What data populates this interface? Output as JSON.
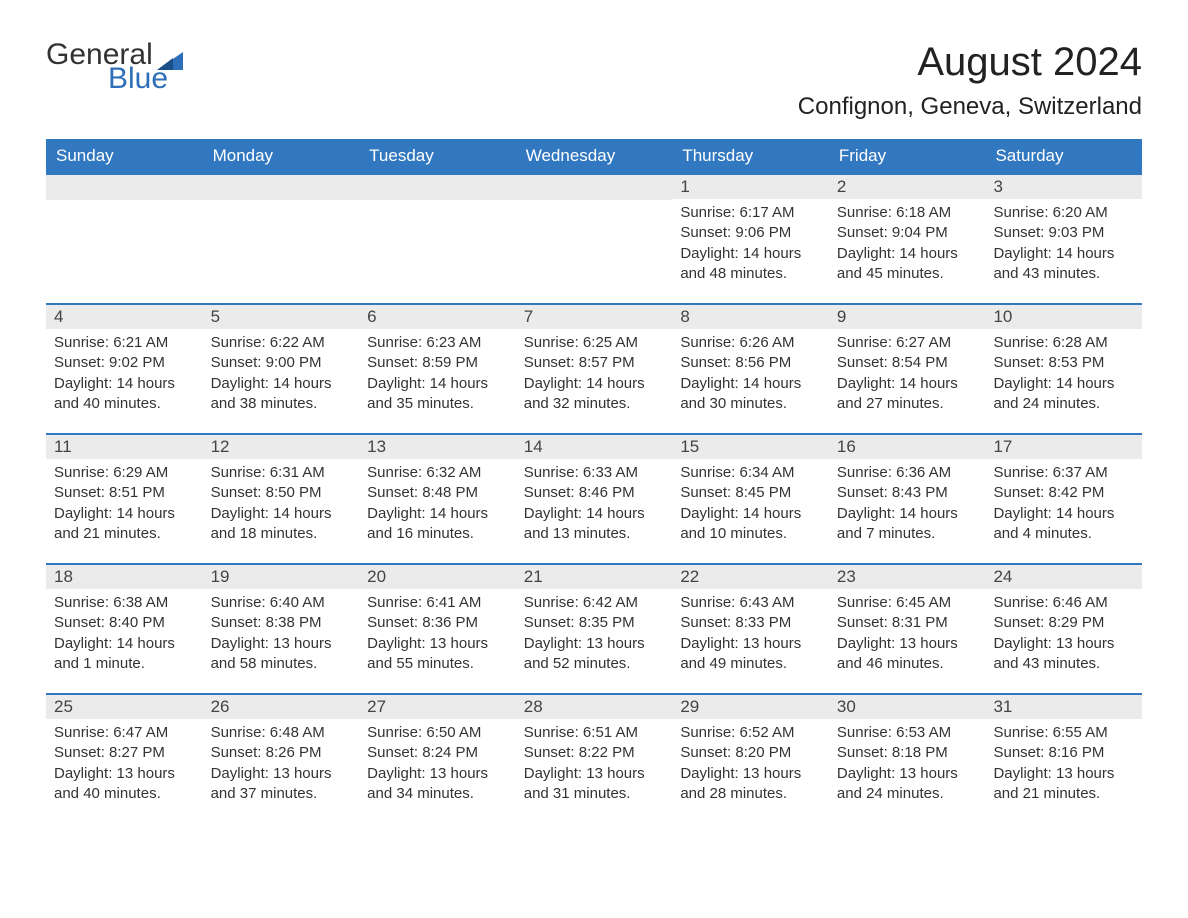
{
  "logo": {
    "word1": "General",
    "word2": "Blue",
    "accent_color": "#2d6fb8"
  },
  "title": "August 2024",
  "location": "Confignon, Geneva, Switzerland",
  "colors": {
    "header_bg": "#3178c0",
    "header_text": "#ffffff",
    "daynum_bg": "#ebebeb",
    "text": "#333333",
    "border": "#3178c0",
    "page_bg": "#ffffff"
  },
  "typography": {
    "month_title_size_pt": 30,
    "location_size_pt": 18,
    "dow_size_pt": 13,
    "daynum_size_pt": 13,
    "body_size_pt": 11
  },
  "calendar": {
    "type": "table",
    "days_of_week": [
      "Sunday",
      "Monday",
      "Tuesday",
      "Wednesday",
      "Thursday",
      "Friday",
      "Saturday"
    ],
    "weeks": [
      [
        null,
        null,
        null,
        null,
        {
          "n": "1",
          "sunrise": "6:17 AM",
          "sunset": "9:06 PM",
          "daylight": "14 hours and 48 minutes."
        },
        {
          "n": "2",
          "sunrise": "6:18 AM",
          "sunset": "9:04 PM",
          "daylight": "14 hours and 45 minutes."
        },
        {
          "n": "3",
          "sunrise": "6:20 AM",
          "sunset": "9:03 PM",
          "daylight": "14 hours and 43 minutes."
        }
      ],
      [
        {
          "n": "4",
          "sunrise": "6:21 AM",
          "sunset": "9:02 PM",
          "daylight": "14 hours and 40 minutes."
        },
        {
          "n": "5",
          "sunrise": "6:22 AM",
          "sunset": "9:00 PM",
          "daylight": "14 hours and 38 minutes."
        },
        {
          "n": "6",
          "sunrise": "6:23 AM",
          "sunset": "8:59 PM",
          "daylight": "14 hours and 35 minutes."
        },
        {
          "n": "7",
          "sunrise": "6:25 AM",
          "sunset": "8:57 PM",
          "daylight": "14 hours and 32 minutes."
        },
        {
          "n": "8",
          "sunrise": "6:26 AM",
          "sunset": "8:56 PM",
          "daylight": "14 hours and 30 minutes."
        },
        {
          "n": "9",
          "sunrise": "6:27 AM",
          "sunset": "8:54 PM",
          "daylight": "14 hours and 27 minutes."
        },
        {
          "n": "10",
          "sunrise": "6:28 AM",
          "sunset": "8:53 PM",
          "daylight": "14 hours and 24 minutes."
        }
      ],
      [
        {
          "n": "11",
          "sunrise": "6:29 AM",
          "sunset": "8:51 PM",
          "daylight": "14 hours and 21 minutes."
        },
        {
          "n": "12",
          "sunrise": "6:31 AM",
          "sunset": "8:50 PM",
          "daylight": "14 hours and 18 minutes."
        },
        {
          "n": "13",
          "sunrise": "6:32 AM",
          "sunset": "8:48 PM",
          "daylight": "14 hours and 16 minutes."
        },
        {
          "n": "14",
          "sunrise": "6:33 AM",
          "sunset": "8:46 PM",
          "daylight": "14 hours and 13 minutes."
        },
        {
          "n": "15",
          "sunrise": "6:34 AM",
          "sunset": "8:45 PM",
          "daylight": "14 hours and 10 minutes."
        },
        {
          "n": "16",
          "sunrise": "6:36 AM",
          "sunset": "8:43 PM",
          "daylight": "14 hours and 7 minutes."
        },
        {
          "n": "17",
          "sunrise": "6:37 AM",
          "sunset": "8:42 PM",
          "daylight": "14 hours and 4 minutes."
        }
      ],
      [
        {
          "n": "18",
          "sunrise": "6:38 AM",
          "sunset": "8:40 PM",
          "daylight": "14 hours and 1 minute."
        },
        {
          "n": "19",
          "sunrise": "6:40 AM",
          "sunset": "8:38 PM",
          "daylight": "13 hours and 58 minutes."
        },
        {
          "n": "20",
          "sunrise": "6:41 AM",
          "sunset": "8:36 PM",
          "daylight": "13 hours and 55 minutes."
        },
        {
          "n": "21",
          "sunrise": "6:42 AM",
          "sunset": "8:35 PM",
          "daylight": "13 hours and 52 minutes."
        },
        {
          "n": "22",
          "sunrise": "6:43 AM",
          "sunset": "8:33 PM",
          "daylight": "13 hours and 49 minutes."
        },
        {
          "n": "23",
          "sunrise": "6:45 AM",
          "sunset": "8:31 PM",
          "daylight": "13 hours and 46 minutes."
        },
        {
          "n": "24",
          "sunrise": "6:46 AM",
          "sunset": "8:29 PM",
          "daylight": "13 hours and 43 minutes."
        }
      ],
      [
        {
          "n": "25",
          "sunrise": "6:47 AM",
          "sunset": "8:27 PM",
          "daylight": "13 hours and 40 minutes."
        },
        {
          "n": "26",
          "sunrise": "6:48 AM",
          "sunset": "8:26 PM",
          "daylight": "13 hours and 37 minutes."
        },
        {
          "n": "27",
          "sunrise": "6:50 AM",
          "sunset": "8:24 PM",
          "daylight": "13 hours and 34 minutes."
        },
        {
          "n": "28",
          "sunrise": "6:51 AM",
          "sunset": "8:22 PM",
          "daylight": "13 hours and 31 minutes."
        },
        {
          "n": "29",
          "sunrise": "6:52 AM",
          "sunset": "8:20 PM",
          "daylight": "13 hours and 28 minutes."
        },
        {
          "n": "30",
          "sunrise": "6:53 AM",
          "sunset": "8:18 PM",
          "daylight": "13 hours and 24 minutes."
        },
        {
          "n": "31",
          "sunrise": "6:55 AM",
          "sunset": "8:16 PM",
          "daylight": "13 hours and 21 minutes."
        }
      ]
    ],
    "labels": {
      "sunrise": "Sunrise: ",
      "sunset": "Sunset: ",
      "daylight": "Daylight: "
    }
  }
}
